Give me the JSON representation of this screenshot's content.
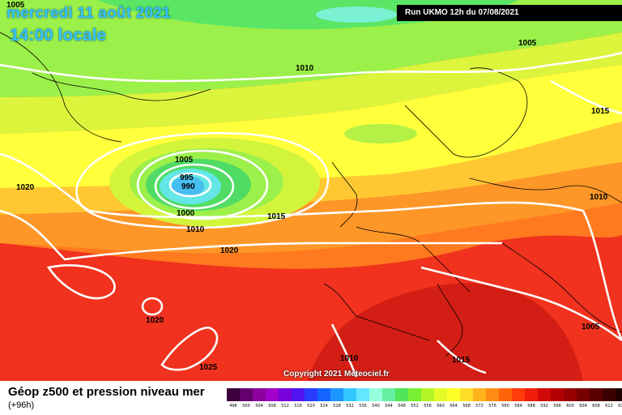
{
  "header": {
    "date_title": "mercredi 11 août 2021",
    "time_title": "14:00 locale",
    "run_info": "Run UKMO 12h du 07/08/2021"
  },
  "map": {
    "copyright": "Copyright 2021 Meteociel.fr",
    "pressure_labels": [
      "1005",
      "1010",
      "1005",
      "1015",
      "1005",
      "995",
      "990",
      "1000",
      "1010",
      "1015",
      "1020",
      "1020",
      "1010",
      "1020",
      "1025",
      "1010",
      "1015",
      "1005"
    ],
    "colors": {
      "low_center": "#8fe6ff",
      "deep_green": "#59e05a",
      "light_green": "#9cf04a",
      "yellow_green": "#d7f53c",
      "yellow": "#ffff3c",
      "light_orange": "#ffc832",
      "orange": "#ff8c1e",
      "red_orange": "#ff4614",
      "red": "#e81e14",
      "dark_red": "#c80a0a",
      "isobar": "#ffffff",
      "coast": "#000000"
    }
  },
  "footer": {
    "title": "Géop z500 et pression niveau mer",
    "subtitle": "(+96h)"
  },
  "legend": {
    "colors": [
      "#3c003c",
      "#64006e",
      "#8c00a0",
      "#a000c8",
      "#7800dc",
      "#5014f0",
      "#283cff",
      "#1464ff",
      "#1e96ff",
      "#32c8ff",
      "#64e6ff",
      "#96ffdc",
      "#64f0a0",
      "#50e65a",
      "#78f032",
      "#b4f528",
      "#e6fa28",
      "#ffff28",
      "#ffdc28",
      "#ffb41e",
      "#ff8c14",
      "#ff640a",
      "#ff3c0a",
      "#f01e0a",
      "#d20a0a",
      "#b40000",
      "#960000",
      "#780000",
      "#5a0000",
      "#3c0000",
      "#1e0000",
      "#000000"
    ],
    "ticks": [
      "496",
      "500",
      "504",
      "508",
      "512",
      "516",
      "520",
      "524",
      "528",
      "532",
      "536",
      "540",
      "544",
      "548",
      "552",
      "556",
      "560",
      "564",
      "568",
      "572",
      "576",
      "580",
      "584",
      "588",
      "592",
      "596",
      "600",
      "604",
      "608",
      "612",
      "616",
      ""
    ]
  }
}
